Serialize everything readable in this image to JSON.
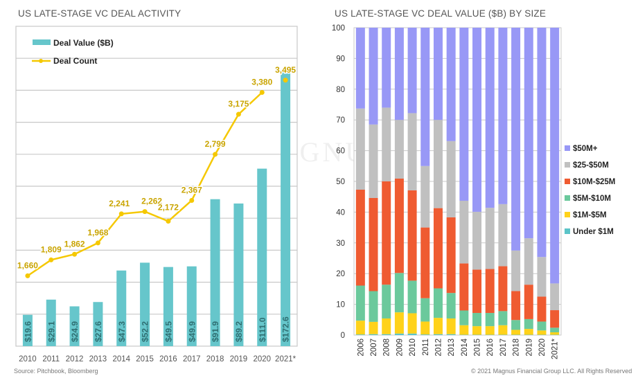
{
  "watermark": "MAGNUS FINANCIAL GROUP",
  "footer": {
    "source": "Source: Pitchbook, Bloomberg",
    "copyright": "© 2021 Magnus Financial Group LLC. All Rights Reserved"
  },
  "colors": {
    "bar": "#66c6cb",
    "line": "#f5c800",
    "line_label": "#c9a400",
    "grid": "#c8c8c8"
  },
  "chart_data": [
    {
      "type": "bar",
      "title": "US LATE-STAGE VC DEAL ACTIVITY",
      "categories": [
        "2010",
        "2011",
        "2012",
        "2013",
        "2014",
        "2015",
        "2016",
        "2017",
        "2018",
        "2019",
        "2020",
        "2021*"
      ],
      "series": [
        {
          "name": "Deal Value ($B)",
          "type": "bar",
          "values": [
            19.6,
            29.1,
            24.9,
            27.6,
            47.3,
            52.2,
            49.5,
            49.9,
            91.9,
            89.2,
            111.0,
            172.6
          ],
          "labels": [
            "$19.6",
            "$29.1",
            "$24.9",
            "$27.6",
            "$47.3",
            "$52.2",
            "$49.5",
            "$49.9",
            "$91.9",
            "$89.2",
            "$111.0",
            "$172.6"
          ],
          "ylim": [
            0,
            200
          ]
        },
        {
          "name": "Deal Count",
          "type": "line",
          "values": [
            1660,
            1809,
            1862,
            1968,
            2241,
            2262,
            2172,
            2367,
            2799,
            3175,
            3380,
            3495
          ],
          "labels": [
            "1,660",
            "1,809",
            "1,862",
            "1,968",
            "2,241",
            "2,262",
            "2,172",
            "2,367",
            "2,799",
            "3,175",
            "3,380",
            "3,495"
          ],
          "ylim": [
            1000,
            4000
          ]
        }
      ],
      "grid": true,
      "legend": "top-left"
    },
    {
      "type": "bar",
      "stacked": true,
      "title": "US LATE-STAGE VC DEAL VALUE ($B) BY SIZE",
      "categories": [
        "2006",
        "2007",
        "2008",
        "2009",
        "2010",
        "2011",
        "2012",
        "2013",
        "2014",
        "2015",
        "2016",
        "2017",
        "2018",
        "2019",
        "2020",
        "2021*"
      ],
      "ylim": [
        0,
        100
      ],
      "yticks": [
        "0",
        "10",
        "20",
        "30",
        "40",
        "50",
        "60",
        "70",
        "80",
        "90",
        "100"
      ],
      "legend": "right",
      "series": [
        {
          "name": "Under $1M",
          "color": "#5bc4c8",
          "values": [
            0.2,
            0.3,
            0.3,
            0.5,
            0.5,
            0.2,
            0.3,
            0.3,
            0.1,
            0.1,
            0.1,
            0.1,
            0.1,
            0.1,
            0.1,
            0.1
          ]
        },
        {
          "name": "$1M-$5M",
          "color": "#ffd21a",
          "values": [
            4.5,
            4.0,
            5.1,
            6.9,
            6.6,
            4.2,
            5.3,
            5.1,
            3.1,
            2.8,
            2.8,
            3.1,
            1.6,
            1.9,
            1.4,
            0.8
          ]
        },
        {
          "name": "$5M-$10M",
          "color": "#6bc99c",
          "values": [
            11.4,
            10.0,
            11.0,
            12.8,
            10.6,
            7.6,
            9.6,
            8.3,
            4.8,
            4.3,
            4.3,
            4.6,
            3.2,
            3.2,
            2.9,
            1.5
          ]
        },
        {
          "name": "$10M-$25M",
          "color": "#ef5b31",
          "values": [
            31.2,
            30.3,
            33.6,
            30.7,
            29.4,
            23.0,
            26.1,
            24.6,
            15.3,
            14.1,
            14.3,
            14.6,
            9.4,
            11.2,
            8.1,
            5.7
          ]
        },
        {
          "name": "$25-$50M",
          "color": "#c0c0c0",
          "values": [
            26.4,
            23.9,
            24.0,
            19.1,
            25.1,
            20.0,
            28.7,
            24.8,
            20.4,
            18.8,
            19.9,
            20.2,
            13.2,
            15.1,
            12.9,
            8.7
          ]
        },
        {
          "name": "$50M+",
          "color": "#9898f6",
          "values": [
            26.3,
            31.5,
            26.0,
            30.0,
            27.8,
            45.0,
            30.0,
            36.9,
            56.3,
            59.9,
            58.6,
            57.4,
            72.5,
            68.5,
            74.6,
            83.2
          ]
        }
      ]
    }
  ]
}
